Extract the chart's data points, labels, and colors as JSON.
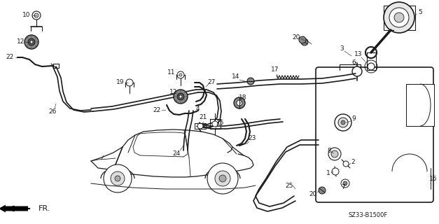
{
  "bg_color": "#ffffff",
  "fig_width": 6.27,
  "fig_height": 3.2,
  "dpi": 100,
  "diagram_code_ref": "SZ33-B1500F",
  "arrow_label": "FR.",
  "font_size_labels": 6.5,
  "font_size_code": 6.0,
  "line_color": "#1a1a1a",
  "label_color": "#1a1a1a"
}
